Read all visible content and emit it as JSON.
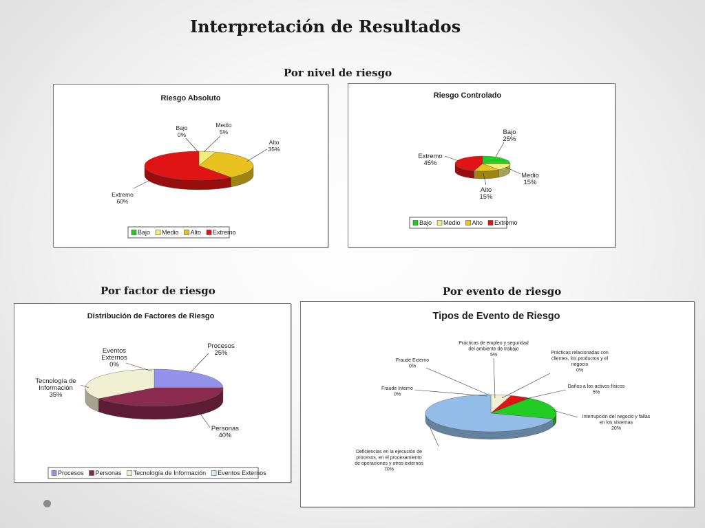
{
  "page": {
    "title": "Interpretación de Resultados",
    "sections": {
      "nivel": "Por nivel de riesgo",
      "factor": "Por factor de riesgo",
      "evento": "Por evento de riesgo"
    }
  },
  "colors": {
    "bajo": "#22cc22",
    "medio": "#f2ee7a",
    "alto": "#e8c21e",
    "extremo": "#e01414",
    "procesos": "#9393ec",
    "personas": "#8a2a4e",
    "tecnologia": "#f2f0d2",
    "eventos_externos": "#d4ecf2",
    "deficiencias": "#93bde8",
    "interrupcion": "#22cc22",
    "danos": "#e01414",
    "practicas_empleo": "#f2f0d2"
  },
  "chart_data": [
    {
      "id": "riesgo_absoluto",
      "type": "pie",
      "title": "Riesgo Absoluto",
      "series": [
        {
          "label": "Bajo",
          "value": 0,
          "display": "0%",
          "color": "#22cc22"
        },
        {
          "label": "Medio",
          "value": 5,
          "display": "5%",
          "color": "#f2ee7a"
        },
        {
          "label": "Alto",
          "value": 35,
          "display": "35%",
          "color": "#e8c21e"
        },
        {
          "label": "Extremo",
          "value": 60,
          "display": "60%",
          "color": "#e01414"
        }
      ],
      "legend": [
        "Bajo",
        "Medio",
        "Alto",
        "Extremo"
      ],
      "legend_position": "bottom"
    },
    {
      "id": "riesgo_controlado",
      "type": "pie",
      "title": "Riesgo Controlado",
      "series": [
        {
          "label": "Bajo",
          "value": 25,
          "display": "25%",
          "color": "#22cc22"
        },
        {
          "label": "Medio",
          "value": 15,
          "display": "15%",
          "color": "#f2ee7a"
        },
        {
          "label": "Alto",
          "value": 15,
          "display": "15%",
          "color": "#e8c21e"
        },
        {
          "label": "Extremo",
          "value": 45,
          "display": "45%",
          "color": "#e01414"
        }
      ],
      "legend": [
        "Bajo",
        "Medio",
        "Alto",
        "Extremo"
      ],
      "legend_position": "bottom"
    },
    {
      "id": "factores",
      "type": "pie",
      "title": "Distribución de Factores de Riesgo",
      "series": [
        {
          "label": "Procesos",
          "value": 25,
          "display": "25%",
          "color": "#9393ec"
        },
        {
          "label": "Personas",
          "value": 40,
          "display": "40%",
          "color": "#8a2a4e"
        },
        {
          "label": "Tecnología de Información",
          "value": 35,
          "display": "35%",
          "color": "#f2f0d2"
        },
        {
          "label": "Eventos Externos",
          "value": 0,
          "display": "0%",
          "color": "#d4ecf2"
        }
      ],
      "legend": [
        "Procesos",
        "Personas",
        "Tecnología de Información",
        "Eventos Externos"
      ],
      "legend_position": "bottom"
    },
    {
      "id": "eventos",
      "type": "pie",
      "title": "Tipos de Evento de Riesgo",
      "series": [
        {
          "label": "Prácticas de empleo y seguridad del ambiente de trabajo",
          "value": 5,
          "display": "5%",
          "color": "#f2f0d2"
        },
        {
          "label": "Prácticas relacionadas con clientes, los productos y el negocio",
          "value": 0,
          "display": "0%",
          "color": "#9393ec"
        },
        {
          "label": "Daños a los activos físicos",
          "value": 5,
          "display": "5%",
          "color": "#e01414"
        },
        {
          "label": "Interrupción del negocio y fallas en los sistemas",
          "value": 20,
          "display": "20%",
          "color": "#22cc22"
        },
        {
          "label": "Deficiencias en la ejecución de procesos, en el procesamiento de operaciones y otros externos",
          "value": 70,
          "display": "70%",
          "color": "#93bde8"
        },
        {
          "label": "Fraude Interno",
          "value": 0,
          "display": "0%",
          "color": "#8a2a4e"
        },
        {
          "label": "Fraude Externo",
          "value": 0,
          "display": "0%",
          "color": "#d4ecf2"
        }
      ],
      "legend_position": "none"
    }
  ]
}
